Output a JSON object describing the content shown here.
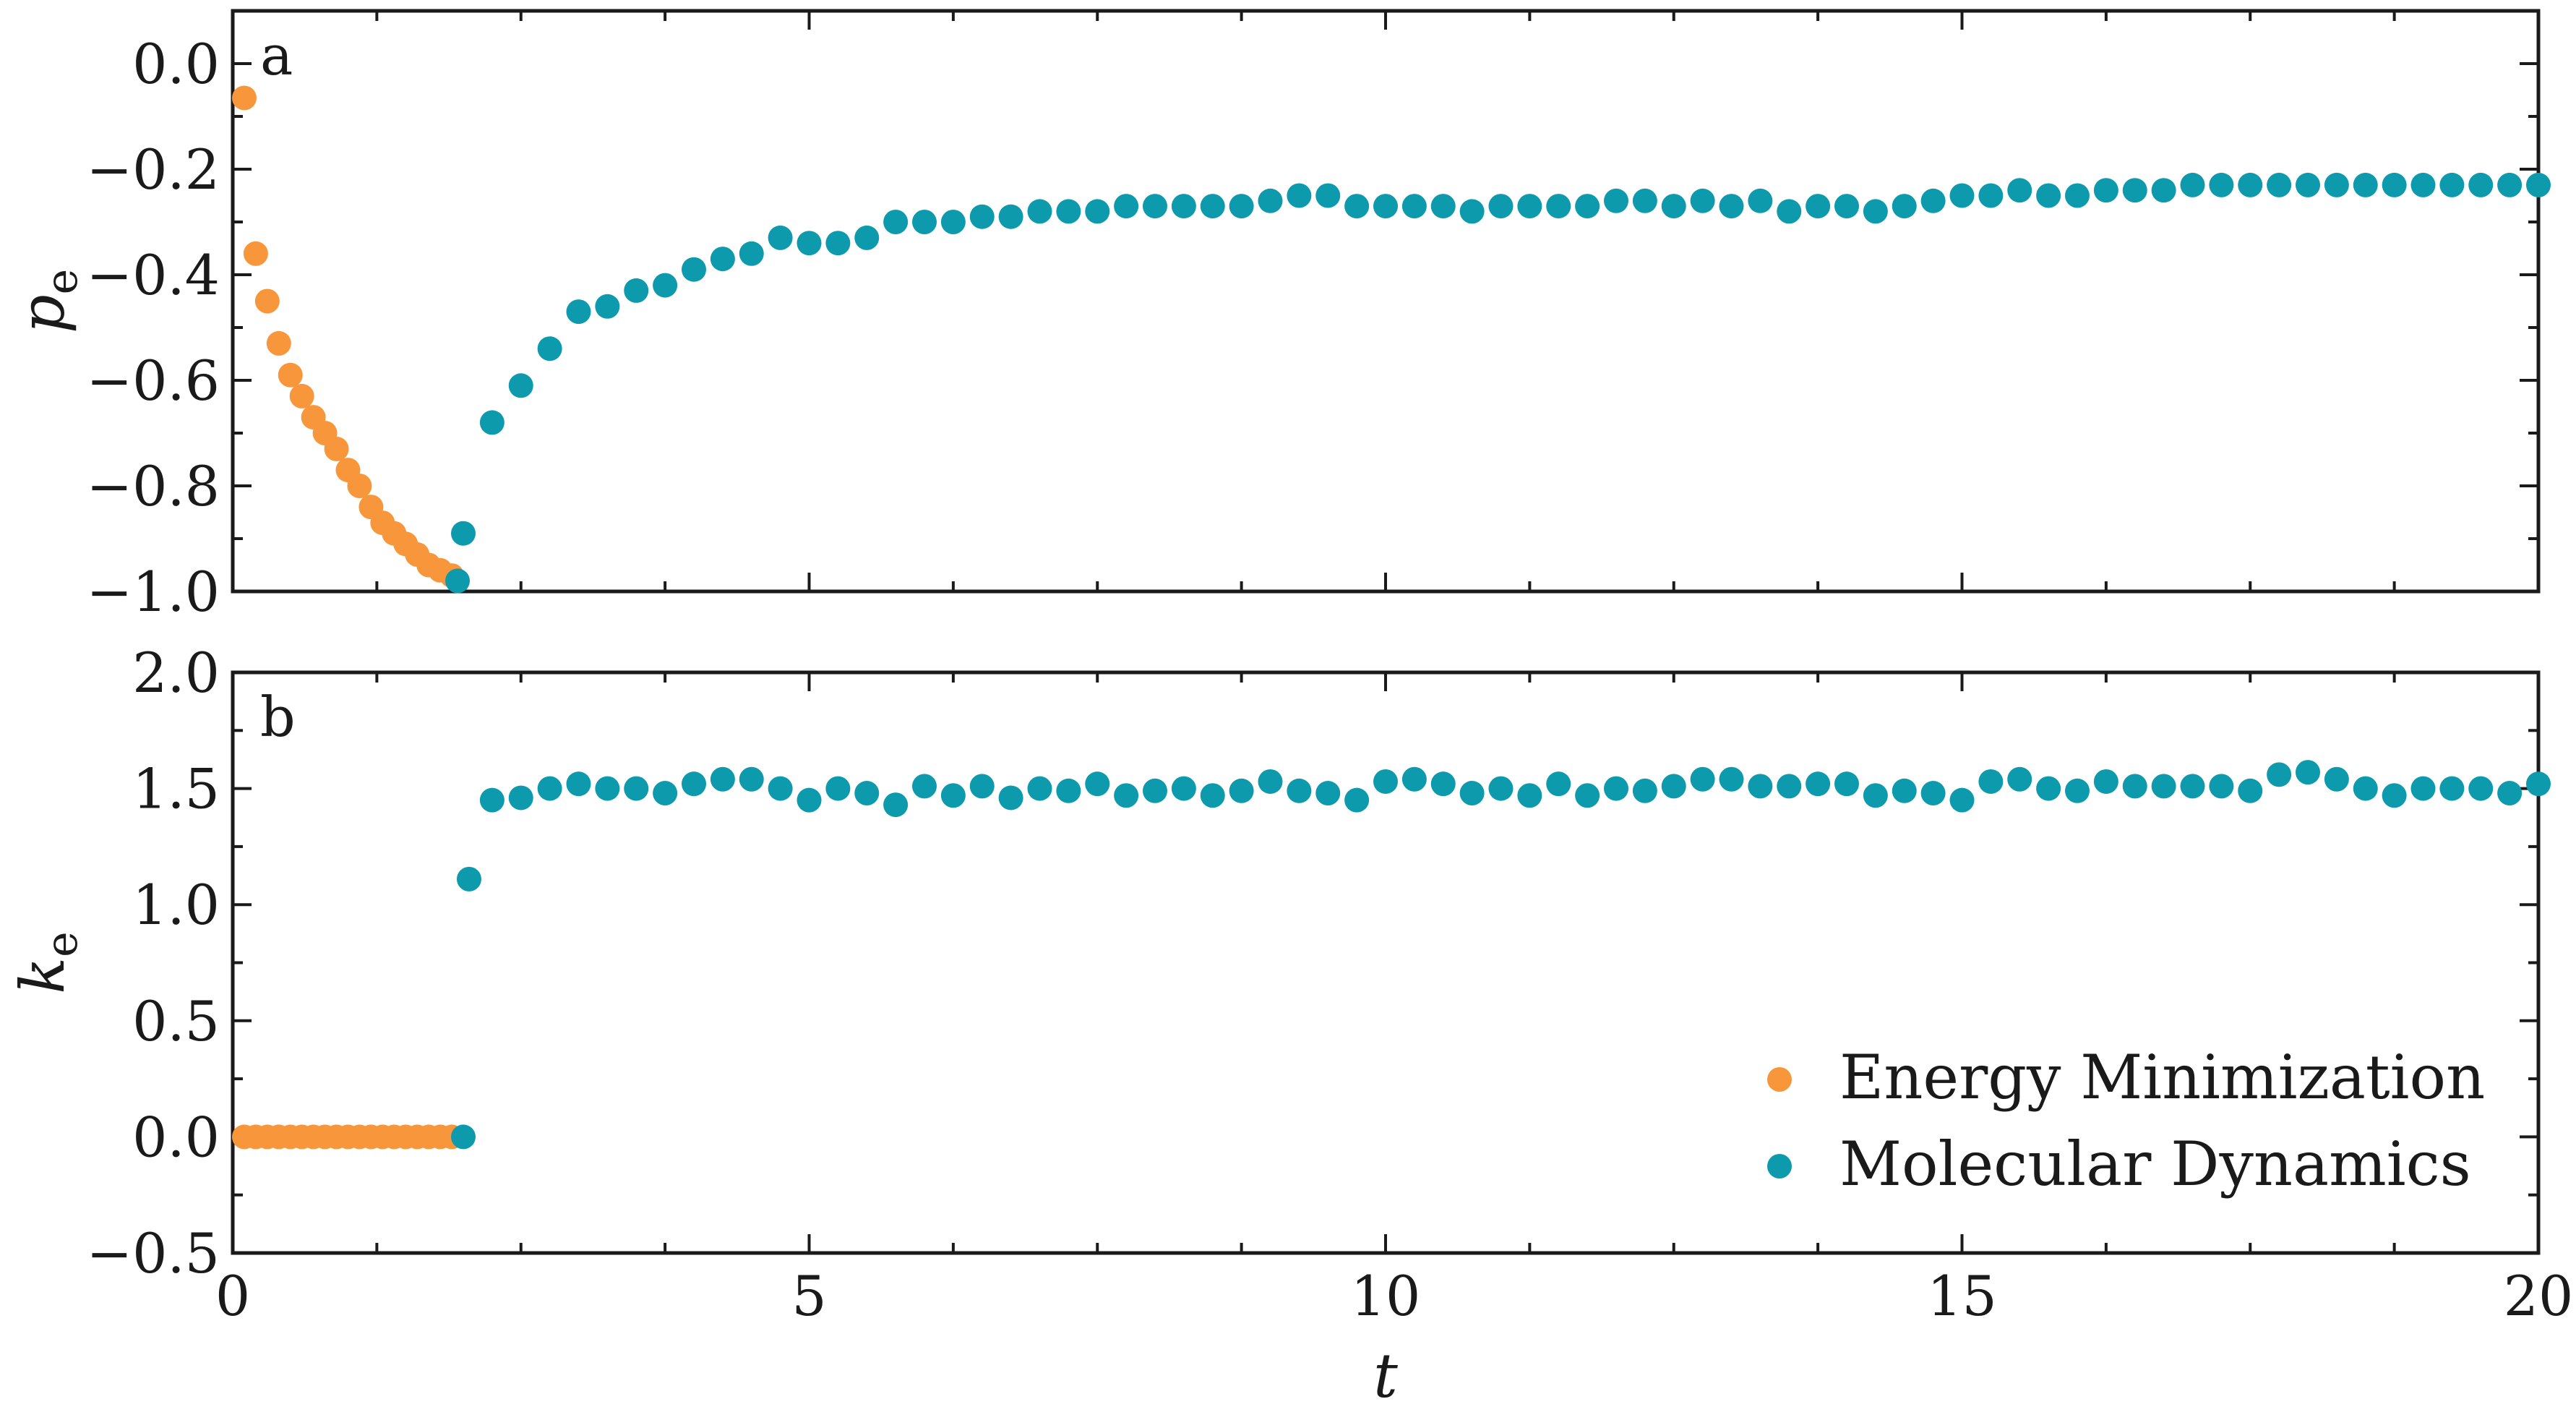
{
  "chart_data": [
    {
      "type": "scatter",
      "panel_label": "a",
      "ylabel": "p",
      "ylabel_sub": "e",
      "xlim": [
        0,
        20
      ],
      "ylim": [
        -1.0,
        0.1
      ],
      "yticks": [
        0.0,
        -0.2,
        -0.4,
        -0.6,
        -0.8,
        -1.0
      ],
      "ytick_labels": [
        "0.0",
        "−0.2",
        "−0.4",
        "−0.6",
        "−0.8",
        "−1.0"
      ],
      "series": [
        {
          "name": "Energy Minimization",
          "color": "#f7963a",
          "x": [
            0.1,
            0.2,
            0.3,
            0.4,
            0.5,
            0.6,
            0.7,
            0.8,
            0.9,
            1.0,
            1.1,
            1.2,
            1.3,
            1.4,
            1.5,
            1.6,
            1.7,
            1.8,
            1.9
          ],
          "y": [
            -0.065,
            -0.36,
            -0.45,
            -0.53,
            -0.59,
            -0.63,
            -0.67,
            -0.7,
            -0.73,
            -0.77,
            -0.8,
            -0.84,
            -0.87,
            -0.89,
            -0.91,
            -0.93,
            -0.95,
            -0.96,
            -0.97
          ]
        },
        {
          "name": "Molecular Dynamics",
          "color": "#0d9aac",
          "x": [
            1.95,
            2.0,
            2.25,
            2.5,
            2.75,
            3.0,
            3.25,
            3.5,
            3.75,
            4.0,
            4.25,
            4.5,
            4.75,
            5.0,
            5.25,
            5.5,
            5.75,
            6.0,
            6.25,
            6.5,
            6.75,
            7.0,
            7.25,
            7.5,
            7.75,
            8.0,
            8.25,
            8.5,
            8.75,
            9.0,
            9.25,
            9.5,
            9.75,
            10.0,
            10.25,
            10.5,
            10.75,
            11.0,
            11.25,
            11.5,
            11.75,
            12.0,
            12.25,
            12.5,
            12.75,
            13.0,
            13.25,
            13.5,
            13.75,
            14.0,
            14.25,
            14.5,
            14.75,
            15.0,
            15.25,
            15.5,
            15.75,
            16.0,
            16.25,
            16.5,
            16.75,
            17.0,
            17.25,
            17.5,
            17.75,
            18.0,
            18.25,
            18.5,
            18.75,
            19.0,
            19.25,
            19.5,
            19.75,
            20.0
          ],
          "y": [
            -0.98,
            -0.89,
            -0.68,
            -0.61,
            -0.54,
            -0.47,
            -0.46,
            -0.43,
            -0.42,
            -0.39,
            -0.37,
            -0.36,
            -0.33,
            -0.34,
            -0.34,
            -0.33,
            -0.3,
            -0.3,
            -0.3,
            -0.29,
            -0.29,
            -0.28,
            -0.28,
            -0.28,
            -0.27,
            -0.27,
            -0.27,
            -0.27,
            -0.27,
            -0.26,
            -0.25,
            -0.25,
            -0.27,
            -0.27,
            -0.27,
            -0.27,
            -0.28,
            -0.27,
            -0.27,
            -0.27,
            -0.27,
            -0.26,
            -0.26,
            -0.27,
            -0.26,
            -0.27,
            -0.26,
            -0.28,
            -0.27,
            -0.27,
            -0.28,
            -0.27,
            -0.26,
            -0.25,
            -0.25,
            -0.24,
            -0.25,
            -0.25,
            -0.24,
            -0.24,
            -0.24,
            -0.23,
            -0.23,
            -0.23,
            -0.23,
            -0.23,
            -0.23,
            -0.23,
            -0.23,
            -0.23,
            -0.23,
            -0.23,
            -0.23,
            -0.23
          ]
        }
      ]
    },
    {
      "type": "scatter",
      "panel_label": "b",
      "xlabel": "t",
      "ylabel": "k",
      "ylabel_sub": "e",
      "xlim": [
        0,
        20
      ],
      "ylim": [
        -0.5,
        2.0
      ],
      "xticks": [
        0,
        5,
        10,
        15,
        20
      ],
      "xtick_labels": [
        "0",
        "5",
        "10",
        "15",
        "20"
      ],
      "yticks": [
        2.0,
        1.5,
        1.0,
        0.5,
        0.0,
        -0.5
      ],
      "ytick_labels": [
        "2.0",
        "1.5",
        "1.0",
        "0.5",
        "0.0",
        "−0.5"
      ],
      "legend_position": "lower-right",
      "series": [
        {
          "name": "Energy Minimization",
          "color": "#f7963a",
          "x": [
            0.1,
            0.2,
            0.3,
            0.4,
            0.5,
            0.6,
            0.7,
            0.8,
            0.9,
            1.0,
            1.1,
            1.2,
            1.3,
            1.4,
            1.5,
            1.6,
            1.7,
            1.8,
            1.9
          ],
          "y": [
            0,
            0,
            0,
            0,
            0,
            0,
            0,
            0,
            0,
            0,
            0,
            0,
            0,
            0,
            0,
            0,
            0,
            0,
            0
          ]
        },
        {
          "name": "Molecular Dynamics",
          "color": "#0d9aac",
          "x": [
            2.0,
            2.05,
            2.25,
            2.5,
            2.75,
            3.0,
            3.25,
            3.5,
            3.75,
            4.0,
            4.25,
            4.5,
            4.75,
            5.0,
            5.25,
            5.5,
            5.75,
            6.0,
            6.25,
            6.5,
            6.75,
            7.0,
            7.25,
            7.5,
            7.75,
            8.0,
            8.25,
            8.5,
            8.75,
            9.0,
            9.25,
            9.5,
            9.75,
            10.0,
            10.25,
            10.5,
            10.75,
            11.0,
            11.25,
            11.5,
            11.75,
            12.0,
            12.25,
            12.5,
            12.75,
            13.0,
            13.25,
            13.5,
            13.75,
            14.0,
            14.25,
            14.5,
            14.75,
            15.0,
            15.25,
            15.5,
            15.75,
            16.0,
            16.25,
            16.5,
            16.75,
            17.0,
            17.25,
            17.5,
            17.75,
            18.0,
            18.25,
            18.5,
            18.75,
            19.0,
            19.25,
            19.5,
            19.75,
            20.0
          ],
          "y": [
            0.0,
            1.11,
            1.45,
            1.46,
            1.5,
            1.52,
            1.5,
            1.5,
            1.48,
            1.52,
            1.54,
            1.54,
            1.5,
            1.45,
            1.5,
            1.48,
            1.43,
            1.51,
            1.47,
            1.51,
            1.46,
            1.5,
            1.49,
            1.52,
            1.47,
            1.49,
            1.5,
            1.47,
            1.49,
            1.53,
            1.49,
            1.48,
            1.45,
            1.53,
            1.54,
            1.52,
            1.48,
            1.5,
            1.47,
            1.52,
            1.47,
            1.5,
            1.49,
            1.51,
            1.54,
            1.54,
            1.51,
            1.51,
            1.52,
            1.52,
            1.47,
            1.49,
            1.48,
            1.45,
            1.53,
            1.54,
            1.5,
            1.49,
            1.53,
            1.51,
            1.51,
            1.51,
            1.51,
            1.49,
            1.56,
            1.57,
            1.54,
            1.5,
            1.47,
            1.5,
            1.5,
            1.5,
            1.48,
            1.52
          ]
        }
      ]
    }
  ]
}
